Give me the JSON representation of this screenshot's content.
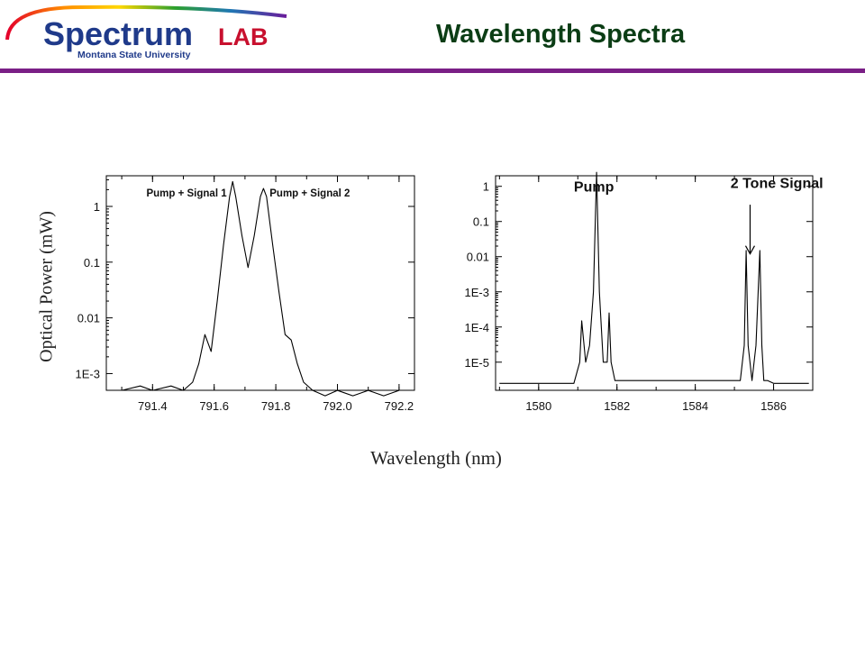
{
  "slide": {
    "title": "Wavelength Spectra",
    "logo": {
      "brand": "Spectrum",
      "lab": "LAB",
      "org": "Montana State University"
    }
  },
  "figure": {
    "ylabel": "Optical Power (mW)",
    "xlabel": "Wavelength (nm)"
  },
  "colors": {
    "title": "#0b3d15",
    "rule": "#7a1f86",
    "logo_blue": "#1f3a8a",
    "logo_red": "#c8102e",
    "trace": "#000000"
  },
  "chart_data": [
    {
      "type": "line",
      "xlim": [
        791.25,
        792.25
      ],
      "ylim_log10": [
        -3.3,
        0.55
      ],
      "yscale": "log",
      "xticks": [
        {
          "v": 791.4,
          "l": "791.4"
        },
        {
          "v": 791.6,
          "l": "791.6"
        },
        {
          "v": 791.8,
          "l": "791.8"
        },
        {
          "v": 792.0,
          "l": "792.0"
        },
        {
          "v": 792.2,
          "l": "792.2"
        }
      ],
      "yticks": [
        {
          "v": 1,
          "l": "1"
        },
        {
          "v": 0.1,
          "l": "0.1"
        },
        {
          "v": 0.01,
          "l": "0.01"
        },
        {
          "v": 0.001,
          "l": "1E-3"
        }
      ],
      "annotations": [
        {
          "text": "Pump + Signal 1",
          "x": 791.38,
          "y": 1.5
        },
        {
          "text": "Pump + Signal 2",
          "x": 791.78,
          "y": 1.5
        }
      ],
      "series": [
        {
          "x": [
            791.3,
            791.36,
            791.4,
            791.46,
            791.5,
            791.53,
            791.55,
            791.57,
            791.59,
            791.61,
            791.63,
            791.65,
            791.66,
            791.67,
            791.69,
            791.71,
            791.73,
            791.75,
            791.76,
            791.77,
            791.79,
            791.81,
            791.83,
            791.85,
            791.87,
            791.89,
            791.92,
            791.96,
            792.0,
            792.05,
            792.1,
            792.15,
            792.2
          ],
          "y": [
            0.0005,
            0.0006,
            0.0005,
            0.0006,
            0.0005,
            0.0007,
            0.0015,
            0.005,
            0.0025,
            0.02,
            0.2,
            1.5,
            2.8,
            1.5,
            0.3,
            0.08,
            0.3,
            1.5,
            2.1,
            1.5,
            0.2,
            0.03,
            0.005,
            0.004,
            0.0015,
            0.0007,
            0.0005,
            0.0004,
            0.0005,
            0.0004,
            0.0005,
            0.0004,
            0.0005
          ]
        }
      ]
    },
    {
      "type": "line",
      "xlim": [
        1578.9,
        1587.0
      ],
      "ylim_log10": [
        -5.8,
        0.3
      ],
      "yscale": "log",
      "xticks": [
        {
          "v": 1580,
          "l": "1580"
        },
        {
          "v": 1582,
          "l": "1582"
        },
        {
          "v": 1584,
          "l": "1584"
        },
        {
          "v": 1586,
          "l": "1586"
        }
      ],
      "yticks": [
        {
          "v": 1,
          "l": "1"
        },
        {
          "v": 0.1,
          "l": "0.1"
        },
        {
          "v": 0.01,
          "l": "0.01"
        },
        {
          "v": 0.001,
          "l": "1E-3"
        },
        {
          "v": 0.0001,
          "l": "1E-4"
        },
        {
          "v": 1e-05,
          "l": "1E-5"
        }
      ],
      "annotations": [
        {
          "text": "Pump",
          "x": 1580.9,
          "y": 0.7
        },
        {
          "text": "2 Tone Signal",
          "x": 1584.9,
          "y": 0.9
        }
      ],
      "arrow": {
        "x": 1585.4,
        "from_y": 0.3,
        "to_y": 0.012
      },
      "series": [
        {
          "x": [
            1579.0,
            1580.0,
            1580.9,
            1581.05,
            1581.1,
            1581.2,
            1581.3,
            1581.4,
            1581.48,
            1581.55,
            1581.65,
            1581.75,
            1581.8,
            1581.85,
            1581.95,
            1582.2,
            1583.0,
            1584.0,
            1585.0,
            1585.15,
            1585.25,
            1585.3,
            1585.35,
            1585.45,
            1585.55,
            1585.65,
            1585.7,
            1585.75,
            1585.85,
            1586.0,
            1586.9
          ],
          "y": [
            2.5e-06,
            2.5e-06,
            2.5e-06,
            1e-05,
            0.00015,
            1e-05,
            3e-05,
            0.001,
            2.5,
            0.001,
            1e-05,
            1e-05,
            0.00025,
            1e-05,
            3e-06,
            3e-06,
            3e-06,
            3e-06,
            3e-06,
            3e-06,
            3e-05,
            0.015,
            3e-05,
            3e-06,
            3e-05,
            0.015,
            3e-05,
            3e-06,
            3e-06,
            2.5e-06,
            2.5e-06
          ]
        }
      ]
    }
  ]
}
